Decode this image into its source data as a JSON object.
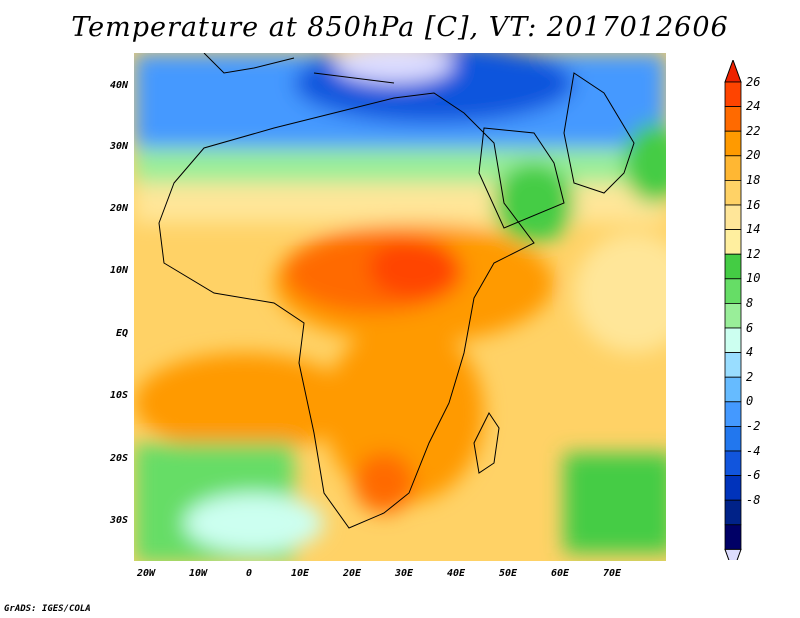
{
  "title": "Temperature at 850hPa [C], VT: 2017012606",
  "credit": "GrADS: IGES/COLA",
  "map": {
    "lat_labels": [
      "40N",
      "30N",
      "20N",
      "10N",
      "EQ",
      "10S",
      "20S",
      "30S"
    ],
    "lon_labels": [
      "20W",
      "10W",
      "0",
      "10E",
      "20E",
      "30E",
      "40E",
      "50E",
      "60E",
      "70E"
    ]
  },
  "colorbar": {
    "labels": [
      "26",
      "24",
      "22",
      "20",
      "18",
      "16",
      "14",
      "12",
      "10",
      "8",
      "6",
      "4",
      "2",
      "0",
      "-2",
      "-4",
      "-6",
      "-8"
    ],
    "colors": [
      "#ff4400",
      "#ff6a00",
      "#ff9a00",
      "#ffb733",
      "#ffd266",
      "#ffe699",
      "#ffef9f",
      "#44cc44",
      "#66dd66",
      "#99ee99",
      "#ccfff0",
      "#99ddff",
      "#66bbff",
      "#4499ff",
      "#2277ee",
      "#1155dd",
      "#0033bb",
      "#002288",
      "#000066"
    ],
    "top_arrow_color": "#ee2200",
    "bottom_arrow_color": "#ddddff"
  }
}
